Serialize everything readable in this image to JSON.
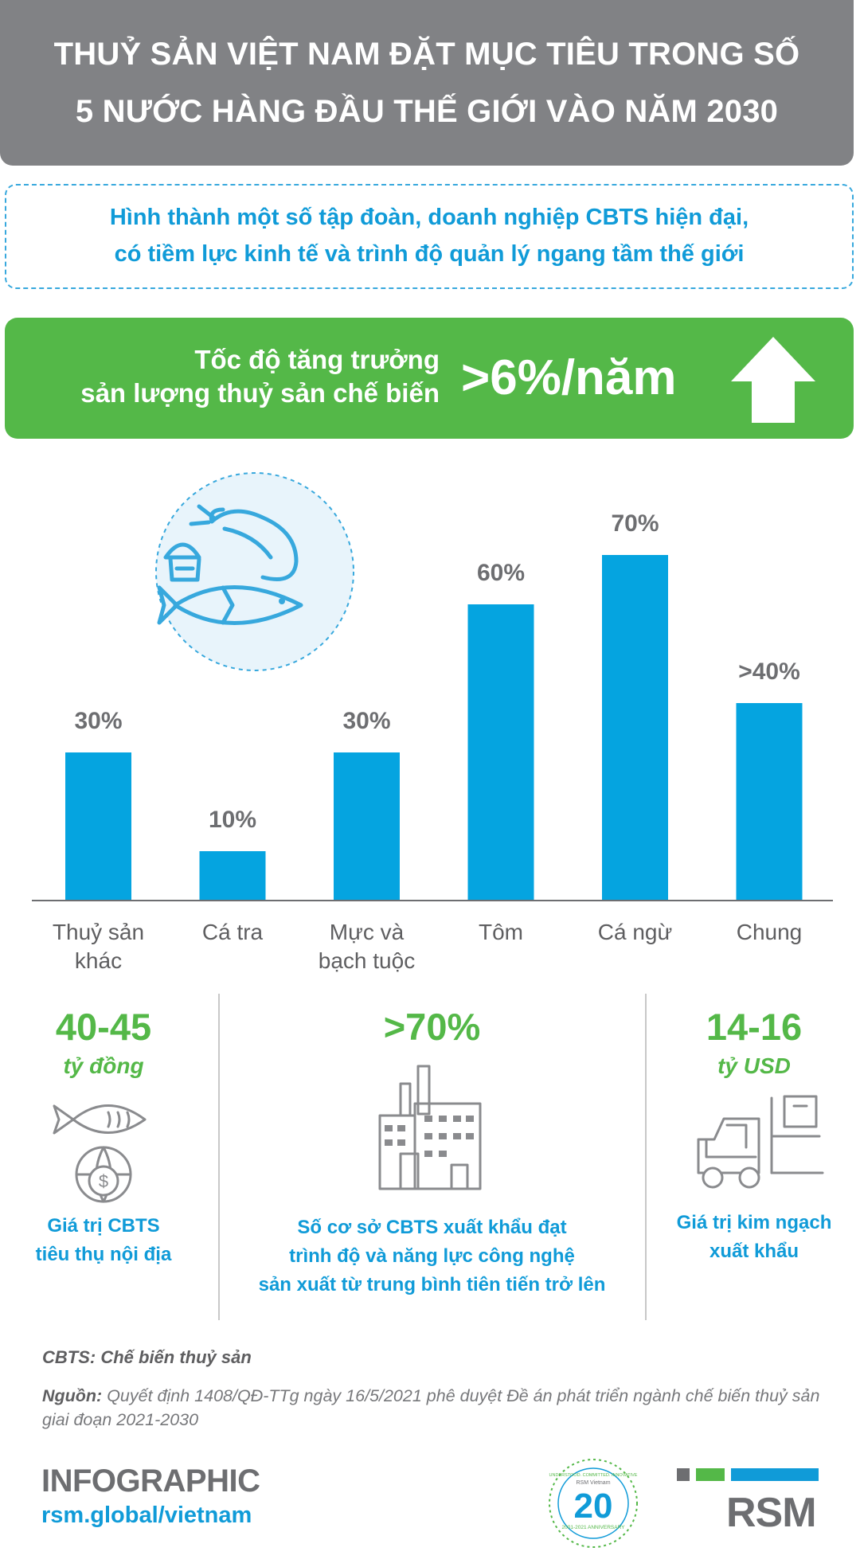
{
  "header": {
    "line1": "THUỶ SẢN VIỆT NAM ĐẶT MỤC TIÊU TRONG SỐ",
    "line2": "5 NƯỚC HÀNG ĐẦU THẾ GIỚI VÀO NĂM 2030"
  },
  "vision": {
    "line1": "Hình thành một số tập đoàn, doanh nghiệp CBTS hiện đại,",
    "line2": "có tiềm lực kinh tế và trình độ quản lý ngang tầm thế giới"
  },
  "growth": {
    "label_line1": "Tốc độ tăng trưởng",
    "label_line2": "sản lượng thuỷ sản chế biến",
    "value": ">6%/năm"
  },
  "chart_data": {
    "type": "bar",
    "categories": [
      [
        "Thuỷ sản",
        "khác"
      ],
      [
        "Cá tra"
      ],
      [
        "Mực và",
        "bạch tuộc"
      ],
      [
        "Tôm"
      ],
      [
        "Cá ngừ"
      ],
      [
        "Chung"
      ]
    ],
    "values": [
      30,
      10,
      30,
      60,
      70,
      40
    ],
    "value_labels": [
      "30%",
      "10%",
      "30%",
      "60%",
      "70%",
      ">40%"
    ],
    "ylim": [
      0,
      75
    ],
    "grid": false,
    "bar_color": "#05a4e0"
  },
  "stats": [
    {
      "value": "40-45",
      "unit": "tỷ đồng",
      "desc": [
        "Giá trị CBTS",
        "tiêu thụ nội địa"
      ]
    },
    {
      "value": ">70%",
      "unit": "",
      "desc": [
        "Số cơ sở CBTS xuất khẩu đạt",
        "trình độ và năng lực công nghệ",
        "sản xuất từ trung bình tiên tiến trở lên"
      ]
    },
    {
      "value": "14-16",
      "unit": "tỷ USD",
      "desc": [
        "Giá trị kim ngạch",
        "xuất khẩu"
      ]
    }
  ],
  "footnote": {
    "abbr": "CBTS: Chế biến thuỷ sản",
    "source_label": "Nguồn:",
    "source_text": " Quyết định 1408/QĐ-TTg ngày 16/5/2021 phê duyệt Đề án phát triển ngành chế biến thuỷ sản giai đoạn 2021-2030"
  },
  "brand": {
    "infographic": "INFOGRAPHIC",
    "url": "rsm.global/vietnam",
    "logo": "RSM",
    "anniv_number": "20",
    "anniv_name": "RSM Vietnam",
    "anniv_motto": "UNDERSTOOD. COMMITTED. INNOVATIVE",
    "anniv_years": "2001-2021 ANNIVERSARY"
  },
  "colors": {
    "header_bg": "#818285",
    "blue": "#109bd8",
    "green": "#54b848",
    "gray_text": "#6d6e71"
  },
  "icons": [
    "seafood-icon",
    "up-arrow-icon",
    "fish-globe-icon",
    "factory-icon",
    "forklift-icon",
    "anniversary-badge",
    "rsm-logo"
  ]
}
